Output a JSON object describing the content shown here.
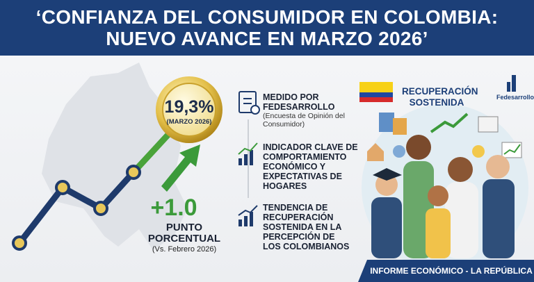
{
  "header": {
    "title_lines": [
      "‘CONFIANZA DEL CONSUMIDOR EN COLOMBIA:",
      "NUEVO AVANCE EN MARZO 2026’"
    ]
  },
  "badge": {
    "value": "19,3%",
    "period": "(MARZO 2026)"
  },
  "change": {
    "value": "+1.0",
    "unit": "PUNTO PORCENTUAL",
    "comparison": "(Vs. Febrero 2026)"
  },
  "items": [
    {
      "title": "MEDIDO POR FEDESARROLLO",
      "subtitle": "(Encuesta de Opinión del Consumidor)"
    },
    {
      "title": "INDICADOR CLAVE DE COMPORTAMIENTO ECONÓMICO Y EXPECTATIVAS DE HOGARES"
    },
    {
      "title": "TENDENCIA DE RECUPERACIÓN SOSTENIDA EN LA PERCEPCIÓN DE LOS COLOMBIANOS"
    }
  ],
  "illustration": {
    "caption": "RECUPERACIÓN SOSTENIDA",
    "logo": "Fedesarrollo"
  },
  "footer": {
    "text": "INFORME ECONÓMICO - LA REPÚBLICA"
  }
}
